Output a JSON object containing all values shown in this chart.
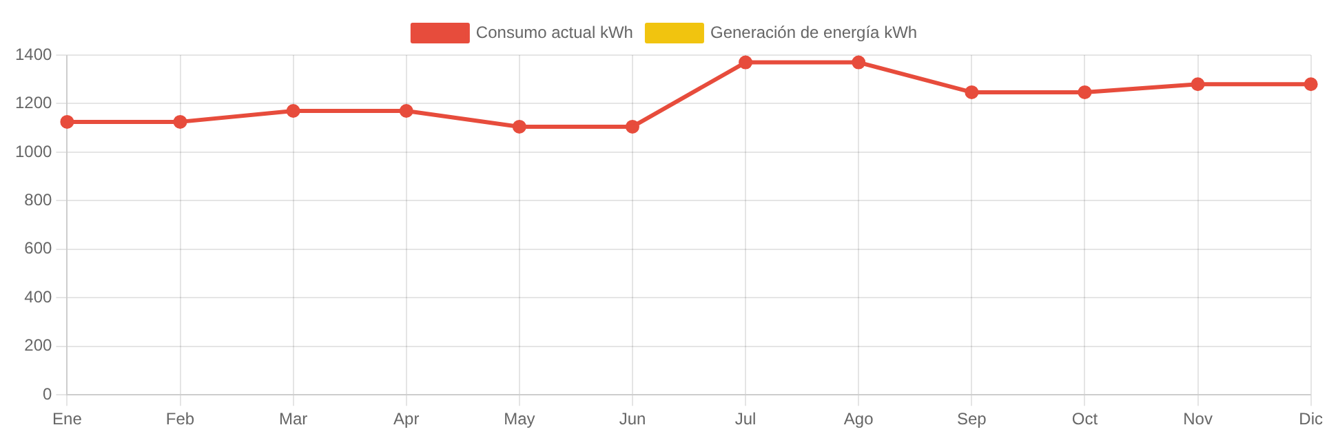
{
  "chart_data": {
    "type": "line",
    "categories": [
      "Ene",
      "Feb",
      "Mar",
      "Apr",
      "May",
      "Jun",
      "Jul",
      "Ago",
      "Sep",
      "Oct",
      "Nov",
      "Dic"
    ],
    "series": [
      {
        "name": "Consumo actual kWh",
        "color": "#e74c3c",
        "values": [
          1125,
          1125,
          1170,
          1170,
          1105,
          1105,
          1370,
          1370,
          1247,
          1247,
          1280,
          1280
        ]
      },
      {
        "name": "Generación de energía kWh",
        "color": "#f1c40f",
        "values": [
          null,
          null,
          null,
          null,
          null,
          null,
          null,
          null,
          null,
          null,
          null,
          null
        ]
      }
    ],
    "ylim": [
      0,
      1400
    ],
    "yticks": [
      0,
      200,
      400,
      600,
      800,
      1000,
      1200,
      1400
    ],
    "grid": true,
    "legend": "top",
    "marker": "circle",
    "line_style": "solid"
  }
}
